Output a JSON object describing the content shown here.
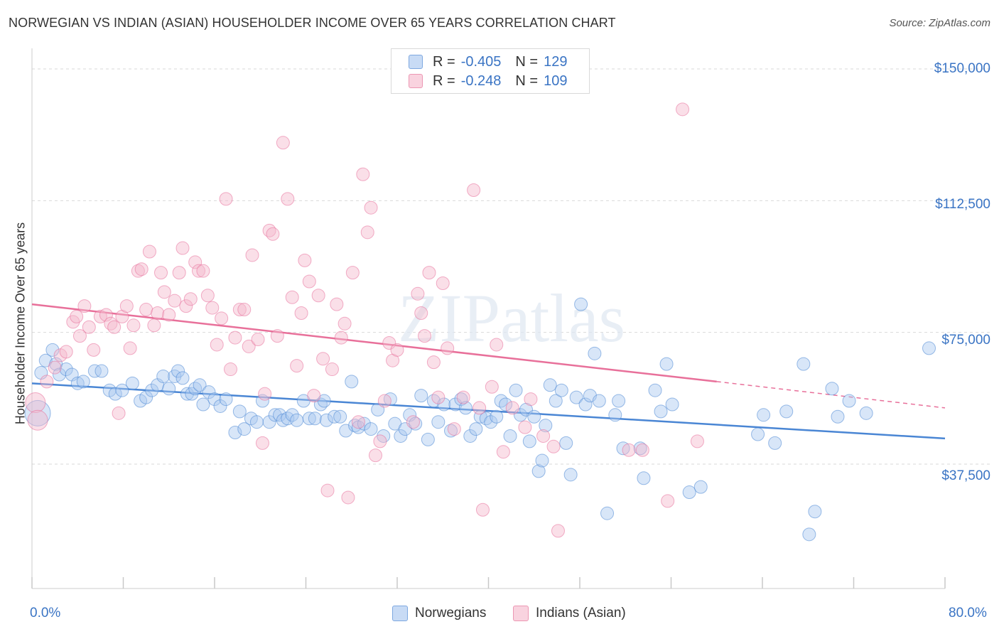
{
  "title": "NORWEGIAN VS INDIAN (ASIAN) HOUSEHOLDER INCOME OVER 65 YEARS CORRELATION CHART",
  "source": "Source: ZipAtlas.com",
  "watermark": "ZIPatlas",
  "legend_top": {
    "rows": [
      {
        "r_label": "R =",
        "r_value": "-0.405",
        "n_label": "N =",
        "n_value": "129",
        "color": "#a9c8f0"
      },
      {
        "r_label": "R =",
        "r_value": "-0.248",
        "n_label": "N =",
        "n_value": "109",
        "color": "#f5b8cb"
      }
    ]
  },
  "legend_bottom": [
    {
      "label": "Norwegians",
      "color": "#a9c8f0"
    },
    {
      "label": "Indians (Asian)",
      "color": "#f5b8cb"
    }
  ],
  "chart_data": {
    "type": "scatter",
    "title": "NORWEGIAN VS INDIAN (ASIAN) HOUSEHOLDER INCOME OVER 65 YEARS CORRELATION CHART",
    "xlabel": "",
    "ylabel": "Householder Income Over 65 years",
    "xlim": [
      0,
      80
    ],
    "ylim": [
      12500,
      155000
    ],
    "x_tick_labels": [
      "0.0%",
      "80.0%"
    ],
    "y_tick_labels": [
      "$150,000",
      "$112,500",
      "$75,000",
      "$37,500"
    ],
    "y_ticks": [
      150000,
      112500,
      75000,
      37500
    ],
    "grid": true,
    "legend": "bottom",
    "series": [
      {
        "name": "Norwegians",
        "color": "#4a86d4",
        "fill": "#a9c8f0",
        "trend": {
          "x": [
            0,
            80
          ],
          "y": [
            60500,
            44800
          ]
        },
        "points": [
          [
            0.5,
            52000
          ],
          [
            0.8,
            63500
          ],
          [
            1.2,
            67000
          ],
          [
            1.8,
            70000
          ],
          [
            2.1,
            66000
          ],
          [
            2.4,
            63000
          ],
          [
            3.0,
            64500
          ],
          [
            3.5,
            63000
          ],
          [
            4.0,
            60500
          ],
          [
            4.5,
            61000
          ],
          [
            5.5,
            64000
          ],
          [
            6.1,
            64000
          ],
          [
            6.8,
            58500
          ],
          [
            7.3,
            57500
          ],
          [
            7.9,
            58500
          ],
          [
            8.8,
            60500
          ],
          [
            9.5,
            55500
          ],
          [
            10.0,
            56500
          ],
          [
            10.5,
            58500
          ],
          [
            11.0,
            60000
          ],
          [
            11.5,
            62500
          ],
          [
            12.0,
            59000
          ],
          [
            12.5,
            62500
          ],
          [
            12.8,
            64000
          ],
          [
            13.2,
            62000
          ],
          [
            13.6,
            57500
          ],
          [
            14.0,
            57500
          ],
          [
            14.3,
            59000
          ],
          [
            14.7,
            60000
          ],
          [
            15.0,
            54500
          ],
          [
            15.5,
            58000
          ],
          [
            16.0,
            56000
          ],
          [
            16.5,
            54000
          ],
          [
            17.0,
            56000
          ],
          [
            17.8,
            46500
          ],
          [
            18.2,
            52500
          ],
          [
            18.6,
            47500
          ],
          [
            19.2,
            50500
          ],
          [
            19.7,
            49500
          ],
          [
            20.2,
            55500
          ],
          [
            20.8,
            49500
          ],
          [
            21.3,
            51500
          ],
          [
            21.7,
            51500
          ],
          [
            22.0,
            50000
          ],
          [
            22.4,
            50500
          ],
          [
            22.8,
            51500
          ],
          [
            23.2,
            50000
          ],
          [
            23.8,
            55500
          ],
          [
            24.3,
            50500
          ],
          [
            24.8,
            50500
          ],
          [
            25.3,
            54500
          ],
          [
            25.6,
            55500
          ],
          [
            25.8,
            50000
          ],
          [
            26.5,
            51000
          ],
          [
            27.0,
            51000
          ],
          [
            27.5,
            47000
          ],
          [
            28.0,
            61000
          ],
          [
            28.3,
            48500
          ],
          [
            28.6,
            48000
          ],
          [
            29.1,
            49000
          ],
          [
            29.7,
            47500
          ],
          [
            30.3,
            53000
          ],
          [
            30.8,
            45500
          ],
          [
            31.4,
            56000
          ],
          [
            31.8,
            49000
          ],
          [
            32.3,
            45500
          ],
          [
            32.7,
            47500
          ],
          [
            33.1,
            51500
          ],
          [
            33.6,
            49000
          ],
          [
            34.1,
            57000
          ],
          [
            34.7,
            44500
          ],
          [
            35.2,
            55500
          ],
          [
            35.6,
            49500
          ],
          [
            36.1,
            54500
          ],
          [
            36.7,
            47000
          ],
          [
            37.1,
            54500
          ],
          [
            37.6,
            56000
          ],
          [
            38.0,
            53500
          ],
          [
            38.4,
            45500
          ],
          [
            38.9,
            47500
          ],
          [
            39.3,
            51000
          ],
          [
            39.8,
            50500
          ],
          [
            40.2,
            49500
          ],
          [
            40.7,
            51000
          ],
          [
            41.1,
            55500
          ],
          [
            41.5,
            54500
          ],
          [
            41.9,
            45500
          ],
          [
            42.4,
            58500
          ],
          [
            42.8,
            51500
          ],
          [
            43.3,
            53000
          ],
          [
            43.6,
            44000
          ],
          [
            44.0,
            51000
          ],
          [
            44.4,
            35500
          ],
          [
            44.7,
            38500
          ],
          [
            45.0,
            48500
          ],
          [
            45.4,
            60000
          ],
          [
            45.9,
            55500
          ],
          [
            46.4,
            58500
          ],
          [
            46.8,
            43500
          ],
          [
            47.2,
            34500
          ],
          [
            47.7,
            56500
          ],
          [
            48.1,
            83000
          ],
          [
            48.5,
            54500
          ],
          [
            48.9,
            57000
          ],
          [
            49.3,
            69000
          ],
          [
            49.7,
            55500
          ],
          [
            50.4,
            23500
          ],
          [
            51.1,
            51500
          ],
          [
            51.4,
            55500
          ],
          [
            51.8,
            42000
          ],
          [
            53.3,
            42000
          ],
          [
            53.6,
            33500
          ],
          [
            54.6,
            58500
          ],
          [
            55.1,
            52500
          ],
          [
            55.6,
            66000
          ],
          [
            56.1,
            54500
          ],
          [
            57.6,
            29500
          ],
          [
            58.6,
            31000
          ],
          [
            63.6,
            46000
          ],
          [
            64.1,
            51500
          ],
          [
            65.1,
            43500
          ],
          [
            66.1,
            52500
          ],
          [
            67.6,
            66000
          ],
          [
            68.1,
            17500
          ],
          [
            68.6,
            24000
          ],
          [
            70.1,
            59000
          ],
          [
            70.6,
            51000
          ],
          [
            71.6,
            55500
          ],
          [
            73.1,
            52000
          ],
          [
            78.6,
            70500
          ]
        ]
      },
      {
        "name": "Indians (Asian)",
        "color": "#e8709a",
        "fill": "#f5b8cb",
        "trend": {
          "x": [
            0,
            60
          ],
          "y": [
            83000,
            61000
          ]
        },
        "trend_dashed": {
          "x": [
            60,
            80
          ],
          "y": [
            61000,
            53500
          ]
        },
        "points": [
          [
            0.3,
            55000
          ],
          [
            0.5,
            50000
          ],
          [
            1.3,
            61000
          ],
          [
            2.0,
            65000
          ],
          [
            2.5,
            68500
          ],
          [
            3.0,
            69500
          ],
          [
            3.6,
            78000
          ],
          [
            3.9,
            79500
          ],
          [
            4.2,
            74000
          ],
          [
            4.6,
            82500
          ],
          [
            5.0,
            76500
          ],
          [
            5.4,
            70000
          ],
          [
            6.0,
            79500
          ],
          [
            6.5,
            80000
          ],
          [
            6.9,
            77500
          ],
          [
            7.2,
            76500
          ],
          [
            7.6,
            52000
          ],
          [
            7.9,
            79500
          ],
          [
            8.3,
            82500
          ],
          [
            8.6,
            70500
          ],
          [
            8.9,
            77000
          ],
          [
            9.3,
            92500
          ],
          [
            9.6,
            93000
          ],
          [
            10.0,
            81500
          ],
          [
            10.3,
            98000
          ],
          [
            10.7,
            77000
          ],
          [
            11.0,
            80500
          ],
          [
            11.3,
            92000
          ],
          [
            11.6,
            86500
          ],
          [
            12.0,
            80000
          ],
          [
            12.5,
            84000
          ],
          [
            12.9,
            92000
          ],
          [
            13.2,
            99000
          ],
          [
            13.5,
            82500
          ],
          [
            13.9,
            84500
          ],
          [
            14.3,
            95000
          ],
          [
            14.6,
            92500
          ],
          [
            15.0,
            92500
          ],
          [
            15.4,
            85500
          ],
          [
            15.8,
            82000
          ],
          [
            16.2,
            71500
          ],
          [
            16.6,
            79000
          ],
          [
            17.0,
            113000
          ],
          [
            17.4,
            64500
          ],
          [
            17.8,
            73500
          ],
          [
            18.2,
            81500
          ],
          [
            18.6,
            81500
          ],
          [
            19.0,
            71000
          ],
          [
            19.3,
            97000
          ],
          [
            19.8,
            73000
          ],
          [
            20.2,
            43500
          ],
          [
            20.4,
            57500
          ],
          [
            20.8,
            104000
          ],
          [
            21.1,
            103000
          ],
          [
            21.5,
            74000
          ],
          [
            22.0,
            129000
          ],
          [
            22.4,
            113000
          ],
          [
            22.8,
            85000
          ],
          [
            23.2,
            65500
          ],
          [
            23.6,
            80500
          ],
          [
            23.9,
            95500
          ],
          [
            24.3,
            89500
          ],
          [
            24.7,
            57000
          ],
          [
            25.1,
            85500
          ],
          [
            25.5,
            67500
          ],
          [
            25.9,
            30000
          ],
          [
            26.3,
            64500
          ],
          [
            26.7,
            83000
          ],
          [
            27.1,
            73500
          ],
          [
            27.4,
            77500
          ],
          [
            27.7,
            28000
          ],
          [
            28.1,
            92000
          ],
          [
            28.6,
            49500
          ],
          [
            29.0,
            120000
          ],
          [
            29.4,
            103500
          ],
          [
            29.7,
            110500
          ],
          [
            30.1,
            40000
          ],
          [
            30.5,
            44000
          ],
          [
            30.9,
            55500
          ],
          [
            31.3,
            72000
          ],
          [
            31.6,
            67000
          ],
          [
            32.0,
            70000
          ],
          [
            33.4,
            49500
          ],
          [
            33.8,
            86000
          ],
          [
            34.1,
            80500
          ],
          [
            34.4,
            74000
          ],
          [
            34.8,
            92000
          ],
          [
            35.2,
            66500
          ],
          [
            35.6,
            56500
          ],
          [
            36.0,
            89000
          ],
          [
            36.4,
            70500
          ],
          [
            37.0,
            47500
          ],
          [
            37.8,
            56500
          ],
          [
            38.7,
            115500
          ],
          [
            39.2,
            53500
          ],
          [
            39.5,
            24500
          ],
          [
            40.3,
            59500
          ],
          [
            40.7,
            71500
          ],
          [
            41.3,
            41000
          ],
          [
            42.1,
            53500
          ],
          [
            43.2,
            48000
          ],
          [
            43.7,
            56000
          ],
          [
            44.8,
            45500
          ],
          [
            45.7,
            42500
          ],
          [
            46.1,
            18500
          ],
          [
            52.3,
            41500
          ],
          [
            53.5,
            41500
          ],
          [
            55.7,
            27000
          ],
          [
            57.0,
            138500
          ],
          [
            58.3,
            44000
          ]
        ]
      }
    ]
  }
}
